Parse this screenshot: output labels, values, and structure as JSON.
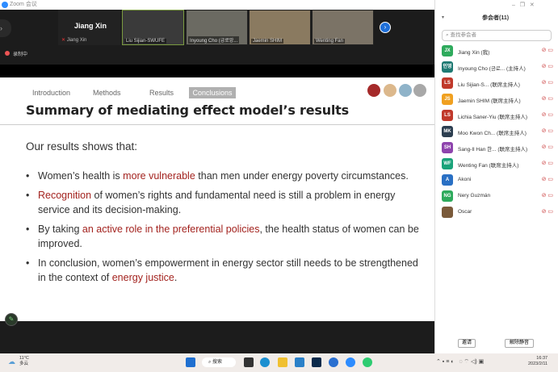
{
  "window": {
    "title": "Zoom 会议"
  },
  "video_strip": {
    "speaker": "Jiang Xin",
    "speaker_label": "Jiang Xin",
    "tiles": [
      "Liu Sijian-SWUFE",
      "Inyoung Cho (긍로앙...",
      "Jaemin SHIM",
      "Wenting Fan"
    ],
    "recording": "录制中"
  },
  "slide": {
    "tabs": [
      "Introduction",
      "Methods",
      "Results",
      "Conclusions"
    ],
    "active_tab": "Conclusions",
    "dot_colors": [
      "#a52a2a",
      "#dcb88c",
      "#8fb3c9",
      "#a8a8a8"
    ],
    "title": "Summary of mediating effect model’s results",
    "intro": "Our results shows that:",
    "bullets": [
      {
        "pre": "Women’s health is ",
        "hl": "more vulnerable",
        "post": " than men under energy poverty circumstances."
      },
      {
        "pre": "",
        "hl": "Recognition",
        "post": " of women’s rights and fundamental need is still a problem in energy service and its decision-making."
      },
      {
        "pre": "By taking ",
        "hl": "an active role in the preferential policies",
        "post": ", the health status of women can be improved."
      },
      {
        "pre": "In conclusion, women’s empowerment in energy sector still needs to be strengthened in the context of ",
        "hl": "energy justice",
        "post": "."
      }
    ]
  },
  "panel": {
    "title": "参会者(11)",
    "search_placeholder": "查找参会者",
    "participants": [
      {
        "initials": "JX",
        "name": "Jiang Xin (我)",
        "color": "#2eaa5c"
      },
      {
        "initials": "인영",
        "name": "Inyoung Cho (긍로... (主持人)",
        "color": "#1f7a73"
      },
      {
        "initials": "LS",
        "name": "Liu Sijian-S... (联席主持人)",
        "color": "#c0392b"
      },
      {
        "initials": "JS",
        "name": "Jaemin SHIM (联席主持人)",
        "color": "#f0a020"
      },
      {
        "initials": "LS",
        "name": "Lichia Saner-Yiu (联席主持人)",
        "color": "#c0392b"
      },
      {
        "initials": "MK",
        "name": "Moo Kwon Ch... (联席主持人)",
        "color": "#2c3e50"
      },
      {
        "initials": "SH",
        "name": "Sang-Il Han 한... (联席主持人)",
        "color": "#8e44ad"
      },
      {
        "initials": "WF",
        "name": "Wenting Fan (联席主持人)",
        "color": "#1aa37a"
      },
      {
        "initials": "A",
        "name": "Akoni",
        "color": "#2970c4"
      },
      {
        "initials": "NG",
        "name": "Nery Guzmán",
        "color": "#2eaa5c"
      },
      {
        "initials": "",
        "name": "Oscar",
        "color": "#7a5a3a"
      }
    ],
    "invite": "邀请",
    "unmute": "解除静音"
  },
  "taskbar": {
    "temp": "11°C",
    "weather": "多云",
    "search": "搜索",
    "time": "16:37",
    "date": "2023/2/11"
  }
}
